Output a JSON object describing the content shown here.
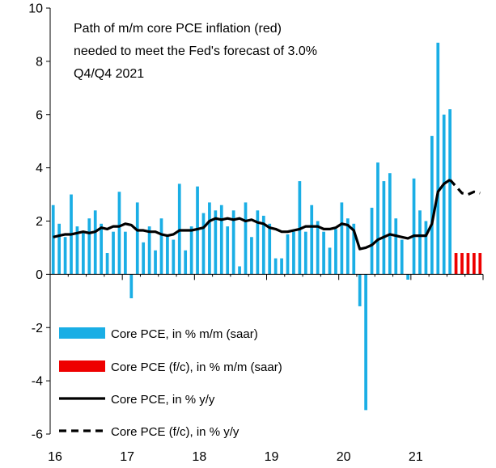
{
  "chart_data": {
    "type": "bar",
    "annotation": [
      "Path of m/m core PCE inflation (red)",
      "needed to meet the Fed's forecast of 3.0%",
      "Q4/Q4 2021"
    ],
    "ylim": [
      -6,
      10
    ],
    "yticks": [
      "-6",
      "-4",
      "-2",
      "0",
      "2",
      "4",
      "6",
      "8",
      "10"
    ],
    "yticks_values": [
      -6,
      -4,
      -2,
      0,
      2,
      4,
      6,
      8,
      10
    ],
    "xticks": [
      "16",
      "17",
      "18",
      "19",
      "20",
      "21"
    ],
    "xticks_values": [
      2016,
      2017,
      2018,
      2019,
      2020,
      2021
    ],
    "xlim": [
      2016,
      2022.0
    ],
    "legend": [
      {
        "label": "Core PCE, in % m/m (saar)",
        "kind": "bar",
        "color": "#1aaee5"
      },
      {
        "label": "Core PCE (f/c), in % m/m (saar)",
        "kind": "bar",
        "color": "#ee0000"
      },
      {
        "label": "Core PCE, in % y/y",
        "kind": "line",
        "color": "#000000"
      },
      {
        "label": "Core PCE (f/c), in % y/y",
        "kind": "dashed",
        "color": "#000000"
      }
    ],
    "series": [
      {
        "name": "Core PCE, in % m/m (saar)",
        "start": "2016-01",
        "values": [
          2.6,
          1.9,
          1.4,
          3.0,
          1.8,
          1.6,
          2.1,
          2.4,
          1.9,
          0.8,
          1.6,
          3.1,
          1.6,
          -0.9,
          2.7,
          1.2,
          1.8,
          0.9,
          2.1,
          1.5,
          1.3,
          3.4,
          0.9,
          1.8,
          3.3,
          2.3,
          2.7,
          2.4,
          2.6,
          1.8,
          2.4,
          0.3,
          2.7,
          1.4,
          2.4,
          2.2,
          1.9,
          0.6,
          0.6,
          1.5,
          1.6,
          3.5,
          1.6,
          2.6,
          2.0,
          1.6,
          1.0,
          1.7,
          2.7,
          2.1,
          1.9,
          -1.2,
          -5.1,
          2.5,
          4.2,
          3.5,
          3.8,
          2.1,
          1.3,
          -0.2,
          3.6,
          2.4,
          2.0,
          5.2,
          8.7,
          6.0,
          6.2
        ]
      },
      {
        "name": "Core PCE (f/c), in % m/m (saar)",
        "start": "2021-08",
        "values": [
          0.8,
          0.8,
          0.8,
          0.8,
          0.8
        ]
      },
      {
        "name": "Core PCE, in % y/y",
        "start": "2016-01",
        "values": [
          1.4,
          1.45,
          1.5,
          1.5,
          1.55,
          1.6,
          1.55,
          1.6,
          1.75,
          1.7,
          1.8,
          1.8,
          1.9,
          1.85,
          1.65,
          1.65,
          1.6,
          1.6,
          1.5,
          1.45,
          1.5,
          1.65,
          1.65,
          1.65,
          1.7,
          1.75,
          2.0,
          2.1,
          2.05,
          2.1,
          2.05,
          2.1,
          2.0,
          2.05,
          1.95,
          1.9,
          1.75,
          1.7,
          1.6,
          1.6,
          1.65,
          1.7,
          1.8,
          1.8,
          1.8,
          1.7,
          1.7,
          1.75,
          1.9,
          1.85,
          1.65,
          0.95,
          1.0,
          1.1,
          1.3,
          1.4,
          1.5,
          1.45,
          1.4,
          1.35,
          1.45,
          1.45,
          1.45,
          1.9,
          3.1,
          3.4,
          3.55
        ]
      },
      {
        "name": "Core PCE (f/c), in % y/y",
        "start": "2021-07",
        "values": [
          3.55,
          3.3,
          3.05,
          3.0,
          3.1,
          3.05
        ]
      }
    ]
  }
}
